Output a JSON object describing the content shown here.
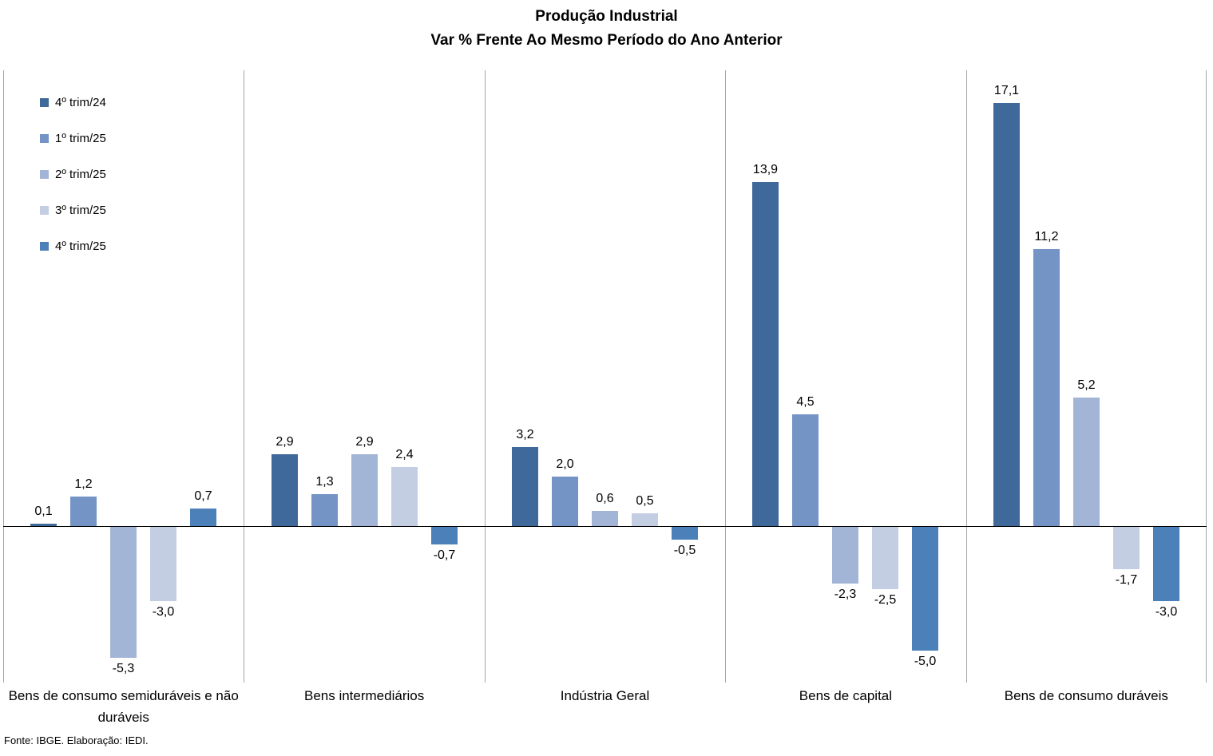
{
  "title": {
    "line1": "Produção Industrial",
    "line2": "Var % Frente Ao Mesmo Período do Ano Anterior"
  },
  "source_note": "Fonte: IBGE. Elaboração: IEDI.",
  "chart_data": {
    "type": "bar",
    "title": "Produção Industrial",
    "subtitle": "Var % Frente Ao Mesmo Período do Ano Anterior",
    "categories": [
      "Bens de consumo semiduráveis e não duráveis",
      "Bens intermediários",
      "Indústria Geral",
      "Bens de capital",
      "Bens de consumo duráveis"
    ],
    "series": [
      {
        "name": "4º trim/24",
        "color": "#40699B",
        "values": [
          0.1,
          2.9,
          3.2,
          13.9,
          17.1
        ]
      },
      {
        "name": "1º trim/25",
        "color": "#7494C6",
        "values": [
          1.2,
          1.3,
          2.0,
          4.5,
          11.2
        ]
      },
      {
        "name": "2º trim/25",
        "color": "#A3B5D6",
        "values": [
          -5.3,
          2.9,
          0.6,
          -2.3,
          5.2
        ]
      },
      {
        "name": "3º trim/25",
        "color": "#C3CEE3",
        "values": [
          -3.0,
          2.4,
          0.5,
          -2.5,
          -1.7
        ]
      },
      {
        "name": "4º trim/25",
        "color": "#4C80B8",
        "values": [
          0.7,
          -0.7,
          -0.5,
          -5.0,
          -3.0
        ]
      }
    ],
    "ylim": [
      -6.3,
      18.5
    ],
    "baseline": 0,
    "grid": "vertical category separator lines only",
    "legend_position": "top-left",
    "value_label_decimal": ",",
    "axis_color": "#000000",
    "separator_color": "#A6A6A6"
  }
}
